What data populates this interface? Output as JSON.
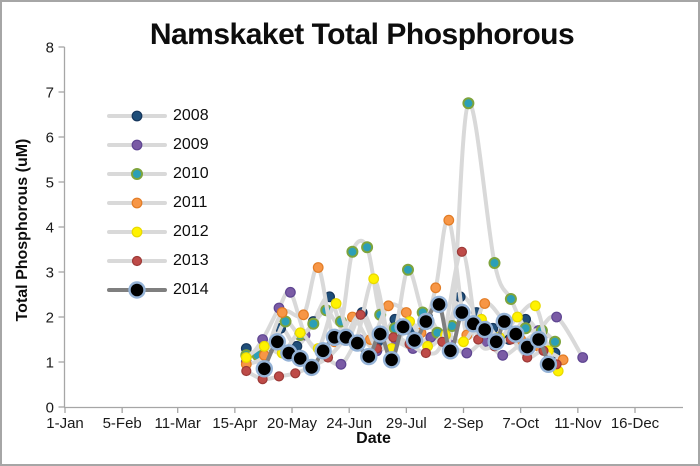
{
  "chart_data": {
    "type": "line",
    "title": "Namskaket Total Phosphorous",
    "xlabel": "Date",
    "ylabel": "Total Phosphorous (uM)",
    "ylim": [
      0,
      8
    ],
    "y_ticks": [
      0,
      1,
      2,
      3,
      4,
      5,
      6,
      7,
      8
    ],
    "x_ticks": [
      {
        "day": 1,
        "label": "1-Jan"
      },
      {
        "day": 36,
        "label": "5-Feb"
      },
      {
        "day": 70,
        "label": "11-Mar"
      },
      {
        "day": 105,
        "label": "15-Apr"
      },
      {
        "day": 140,
        "label": "20-May"
      },
      {
        "day": 175,
        "label": "24-Jun"
      },
      {
        "day": 210,
        "label": "29-Jul"
      },
      {
        "day": 245,
        "label": "2-Sep"
      },
      {
        "day": 280,
        "label": "7-Oct"
      },
      {
        "day": 315,
        "label": "11-Nov"
      },
      {
        "day": 350,
        "label": "16-Dec"
      }
    ],
    "grid": false,
    "legend_position": "upper-left-inside",
    "axis_color": "#a6a6a6",
    "series": [
      {
        "name": "2008",
        "line_color": "#d9d9d9",
        "line_width": 4,
        "marker_fill": "#1F4E79",
        "marker_stroke": "#16365C",
        "marker_stroke_width": 1.2,
        "marker_r": 4.8,
        "points": [
          [
            112,
            1.3
          ],
          [
            123,
            1.1
          ],
          [
            133,
            1.75
          ],
          [
            143,
            1.35
          ],
          [
            153,
            1.9
          ],
          [
            163,
            2.45
          ],
          [
            173,
            1.5
          ],
          [
            183,
            2.1
          ],
          [
            193,
            1.45
          ],
          [
            203,
            1.95
          ],
          [
            213,
            1.7
          ],
          [
            223,
            2.0
          ],
          [
            233,
            1.6
          ],
          [
            243,
            2.45
          ],
          [
            253,
            2.1
          ],
          [
            263,
            1.75
          ],
          [
            273,
            1.5
          ],
          [
            283,
            1.95
          ],
          [
            293,
            1.55
          ],
          [
            301,
            1.2
          ]
        ]
      },
      {
        "name": "2009",
        "line_color": "#d9d9d9",
        "line_width": 4,
        "marker_fill": "#7A5BA5",
        "marker_stroke": "#5E4591",
        "marker_stroke_width": 1.2,
        "marker_r": 4.8,
        "points": [
          [
            112,
            1.0
          ],
          [
            122,
            1.5
          ],
          [
            132,
            2.2
          ],
          [
            139,
            2.55
          ],
          [
            148,
            1.6
          ],
          [
            158,
            1.2
          ],
          [
            170,
            0.95
          ],
          [
            181,
            1.5
          ],
          [
            192,
            1.25
          ],
          [
            203,
            1.45
          ],
          [
            214,
            1.3
          ],
          [
            225,
            1.55
          ],
          [
            236,
            1.4
          ],
          [
            247,
            1.2
          ],
          [
            258,
            1.45
          ],
          [
            269,
            1.15
          ],
          [
            280,
            1.4
          ],
          [
            291,
            1.7
          ],
          [
            302,
            2.0
          ],
          [
            318,
            1.1
          ]
        ]
      },
      {
        "name": "2010",
        "line_color": "#d9d9d9",
        "line_width": 4,
        "marker_fill": "#2C9FB7",
        "marker_stroke": "#7EA43C",
        "marker_stroke_width": 2,
        "marker_r": 5,
        "points": [
          [
            112,
            1.15
          ],
          [
            119,
            1.15
          ],
          [
            128,
            1.35
          ],
          [
            136,
            1.9
          ],
          [
            145,
            1.6
          ],
          [
            153,
            1.85
          ],
          [
            161,
            2.15
          ],
          [
            170,
            1.9
          ],
          [
            177,
            3.45
          ],
          [
            186,
            3.55
          ],
          [
            194,
            2.05
          ],
          [
            203,
            1.75
          ],
          [
            211,
            3.05
          ],
          [
            220,
            2.1
          ],
          [
            229,
            1.65
          ],
          [
            238,
            1.8
          ],
          [
            248,
            6.75
          ],
          [
            264,
            3.2
          ],
          [
            274,
            2.4
          ],
          [
            283,
            1.75
          ],
          [
            293,
            1.7
          ],
          [
            301,
            1.45
          ]
        ]
      },
      {
        "name": "2011",
        "line_color": "#d9d9d9",
        "line_width": 4,
        "marker_fill": "#F79646",
        "marker_stroke": "#E27C25",
        "marker_stroke_width": 1.2,
        "marker_r": 4.8,
        "points": [
          [
            112,
            0.95
          ],
          [
            123,
            1.15
          ],
          [
            134,
            2.1
          ],
          [
            147,
            2.05
          ],
          [
            156,
            3.1
          ],
          [
            166,
            1.45
          ],
          [
            177,
            2.0
          ],
          [
            188,
            1.5
          ],
          [
            199,
            2.25
          ],
          [
            210,
            2.1
          ],
          [
            219,
            1.65
          ],
          [
            228,
            2.65
          ],
          [
            236,
            4.15
          ],
          [
            247,
            1.6
          ],
          [
            258,
            2.3
          ],
          [
            269,
            1.95
          ],
          [
            280,
            1.5
          ],
          [
            291,
            1.35
          ],
          [
            306,
            1.05
          ]
        ]
      },
      {
        "name": "2012",
        "line_color": "#d9d9d9",
        "line_width": 4,
        "marker_fill": "#FFF200",
        "marker_stroke": "#E8D900",
        "marker_stroke_width": 1.2,
        "marker_r": 4.8,
        "points": [
          [
            112,
            1.1
          ],
          [
            123,
            1.35
          ],
          [
            134,
            1.2
          ],
          [
            145,
            1.65
          ],
          [
            156,
            1.3
          ],
          [
            167,
            2.3
          ],
          [
            178,
            1.4
          ],
          [
            190,
            2.85
          ],
          [
            201,
            1.3
          ],
          [
            212,
            1.9
          ],
          [
            223,
            1.35
          ],
          [
            234,
            1.6
          ],
          [
            245,
            1.45
          ],
          [
            256,
            1.95
          ],
          [
            267,
            1.55
          ],
          [
            278,
            2.0
          ],
          [
            289,
            2.25
          ],
          [
            297,
            1.25
          ],
          [
            303,
            0.8
          ]
        ]
      },
      {
        "name": "2013",
        "line_color": "#d9d9d9",
        "line_width": 4,
        "marker_fill": "#BE4B48",
        "marker_stroke": "#9C3A37",
        "marker_stroke_width": 1.2,
        "marker_r": 4.5,
        "points": [
          [
            112,
            0.8
          ],
          [
            122,
            0.62
          ],
          [
            132,
            0.68
          ],
          [
            142,
            0.75
          ],
          [
            152,
            0.9
          ],
          [
            162,
            1.1
          ],
          [
            172,
            1.5
          ],
          [
            182,
            2.05
          ],
          [
            192,
            1.3
          ],
          [
            202,
            1.55
          ],
          [
            212,
            1.4
          ],
          [
            222,
            1.2
          ],
          [
            232,
            1.45
          ],
          [
            244,
            3.45
          ],
          [
            254,
            1.5
          ],
          [
            264,
            1.35
          ],
          [
            274,
            1.5
          ],
          [
            284,
            1.1
          ],
          [
            294,
            1.25
          ],
          [
            302,
            0.95
          ]
        ]
      },
      {
        "name": "2014",
        "line_color": "#7f7f7f",
        "line_width": 4,
        "marker_fill": "#000000",
        "marker_stroke": "#95B3D7",
        "marker_stroke_width": 2.4,
        "marker_r": 7.5,
        "points": [
          [
            123,
            0.85
          ],
          [
            131,
            1.45
          ],
          [
            138,
            1.2
          ],
          [
            145,
            1.08
          ],
          [
            152,
            0.88
          ],
          [
            159,
            1.25
          ],
          [
            166,
            1.55
          ],
          [
            173,
            1.55
          ],
          [
            180,
            1.42
          ],
          [
            187,
            1.12
          ],
          [
            194,
            1.62
          ],
          [
            201,
            1.05
          ],
          [
            208,
            1.78
          ],
          [
            215,
            1.48
          ],
          [
            222,
            1.9
          ],
          [
            230,
            2.28
          ],
          [
            237,
            1.25
          ],
          [
            244,
            2.1
          ],
          [
            251,
            1.85
          ],
          [
            258,
            1.72
          ],
          [
            265,
            1.45
          ],
          [
            270,
            1.9
          ],
          [
            277,
            1.62
          ],
          [
            284,
            1.33
          ],
          [
            291,
            1.5
          ],
          [
            297,
            0.95
          ]
        ]
      }
    ]
  }
}
